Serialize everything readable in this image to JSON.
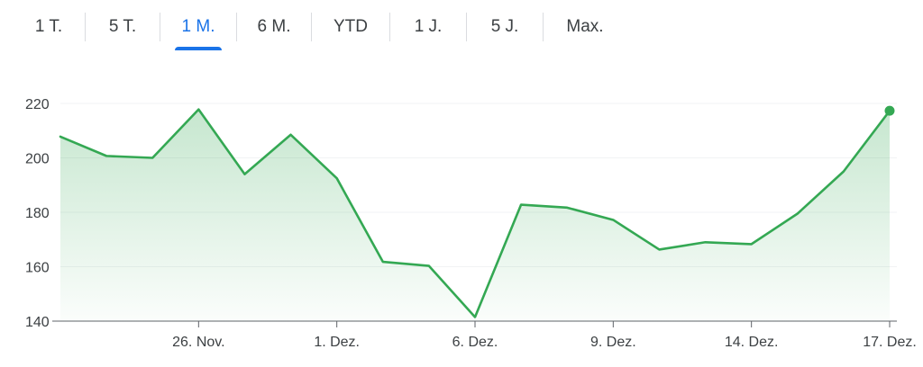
{
  "range_tabs": [
    {
      "label": "1 T.",
      "active": false
    },
    {
      "label": "5 T.",
      "active": false
    },
    {
      "label": "1 M.",
      "active": true
    },
    {
      "label": "6 M.",
      "active": false
    },
    {
      "label": "YTD",
      "active": false
    },
    {
      "label": "1 J.",
      "active": false
    },
    {
      "label": "5 J.",
      "active": false
    },
    {
      "label": "Max.",
      "active": false
    }
  ],
  "colors": {
    "line": "#34a853",
    "active_tab": "#1a73e8",
    "grid": "#f1f3f4",
    "axis": "#5f6368"
  },
  "chart_data": {
    "type": "area",
    "title": "",
    "xlabel": "",
    "ylabel": "",
    "ylim": [
      140,
      220
    ],
    "yticks": [
      140,
      160,
      180,
      200,
      220
    ],
    "ytick_labels": [
      "140",
      "160",
      "180",
      "200",
      "220"
    ],
    "xticks": [
      {
        "index": 3,
        "label": "26. Nov."
      },
      {
        "index": 6,
        "label": "1. Dez."
      },
      {
        "index": 9,
        "label": "6. Dez."
      },
      {
        "index": 12,
        "label": "9. Dez."
      },
      {
        "index": 15,
        "label": "14. Dez."
      },
      {
        "index": 18,
        "label": "17. Dez."
      }
    ],
    "grid": true,
    "legend": "none",
    "series": [
      {
        "values": [
          207.8,
          200.7,
          200.0,
          217.8,
          194.0,
          208.5,
          192.5,
          161.8,
          160.3,
          141.5,
          182.8,
          181.7,
          177.2,
          166.3,
          169.0,
          168.3,
          179.5,
          195.0,
          217.3
        ]
      }
    ]
  }
}
